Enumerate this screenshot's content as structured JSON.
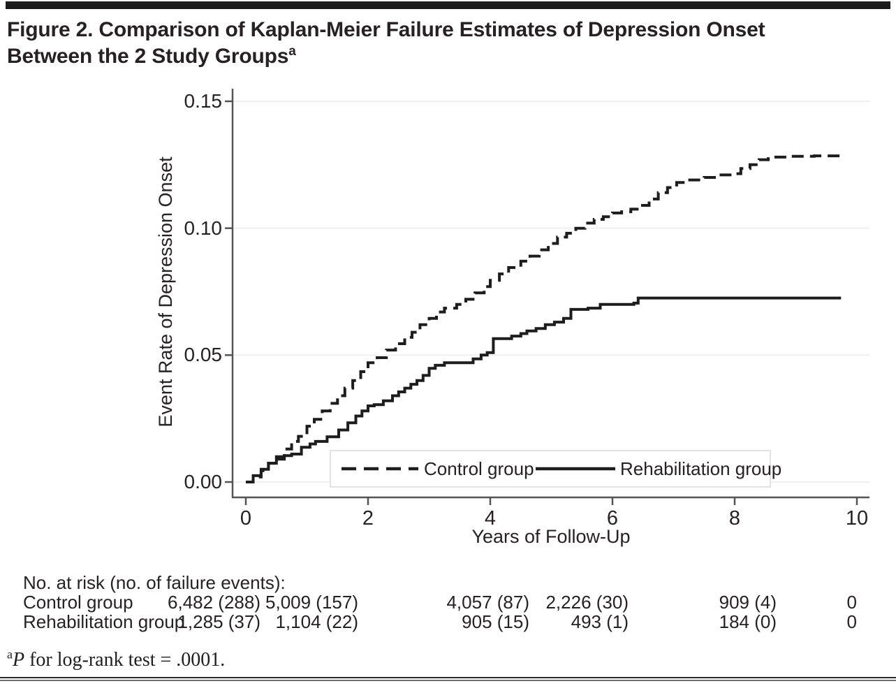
{
  "figure": {
    "title_line1": "Figure 2. Comparison of Kaplan-Meier Failure Estimates of Depression Onset",
    "title_line2": "Between the 2 Study Groups",
    "title_superscript": "a"
  },
  "chart_data": {
    "type": "line",
    "subtype": "kaplan-meier-failure-step",
    "title": "",
    "xlabel": "Years of Follow-Up",
    "ylabel": "Event Rate of Depression Onset",
    "xlim": [
      0,
      10
    ],
    "ylim": [
      0,
      0.15
    ],
    "xticks": [
      0,
      2,
      4,
      6,
      8,
      10
    ],
    "ytick_labels": [
      "0.00",
      "0.05",
      "0.10",
      "0.15"
    ],
    "ytick_values": [
      0,
      0.05,
      0.1,
      0.15
    ],
    "grid": "horizontal-light",
    "legend_position": "inside-bottom-center",
    "series": [
      {
        "name": "Control group",
        "style": "dashed",
        "points": [
          [
            0,
            0
          ],
          [
            0.12,
            0.002
          ],
          [
            0.25,
            0.0045
          ],
          [
            0.37,
            0.0074
          ],
          [
            0.5,
            0.01
          ],
          [
            0.63,
            0.013
          ],
          [
            0.75,
            0.016
          ],
          [
            0.86,
            0.018
          ],
          [
            1.0,
            0.022
          ],
          [
            1.12,
            0.0247
          ],
          [
            1.25,
            0.028
          ],
          [
            1.38,
            0.031
          ],
          [
            1.5,
            0.034
          ],
          [
            1.62,
            0.037
          ],
          [
            1.75,
            0.04
          ],
          [
            1.88,
            0.0435
          ],
          [
            2.0,
            0.047
          ],
          [
            2.15,
            0.049
          ],
          [
            2.3,
            0.052
          ],
          [
            2.45,
            0.0545
          ],
          [
            2.6,
            0.057
          ],
          [
            2.72,
            0.059
          ],
          [
            2.85,
            0.062
          ],
          [
            3.0,
            0.0645
          ],
          [
            3.12,
            0.067
          ],
          [
            3.25,
            0.0685
          ],
          [
            3.45,
            0.07
          ],
          [
            3.6,
            0.072
          ],
          [
            3.75,
            0.0745
          ],
          [
            3.9,
            0.077
          ],
          [
            4.0,
            0.0795
          ],
          [
            4.15,
            0.082
          ],
          [
            4.3,
            0.0845
          ],
          [
            4.5,
            0.087
          ],
          [
            4.65,
            0.089
          ],
          [
            4.8,
            0.0915
          ],
          [
            4.95,
            0.094
          ],
          [
            5.1,
            0.0965
          ],
          [
            5.25,
            0.098
          ],
          [
            5.4,
            0.1
          ],
          [
            5.55,
            0.102
          ],
          [
            5.7,
            0.1035
          ],
          [
            5.85,
            0.1045
          ],
          [
            6.0,
            0.106
          ],
          [
            6.15,
            0.1065
          ],
          [
            6.3,
            0.1075
          ],
          [
            6.45,
            0.109
          ],
          [
            6.6,
            0.1115
          ],
          [
            6.75,
            0.114
          ],
          [
            6.9,
            0.116
          ],
          [
            7.05,
            0.118
          ],
          [
            7.2,
            0.119
          ],
          [
            7.5,
            0.12
          ],
          [
            7.75,
            0.121
          ],
          [
            7.95,
            0.1215
          ],
          [
            8.1,
            0.1235
          ],
          [
            8.25,
            0.125
          ],
          [
            8.4,
            0.127
          ],
          [
            8.55,
            0.128
          ],
          [
            8.9,
            0.1283
          ],
          [
            9.3,
            0.1285
          ],
          [
            9.76,
            0.1285
          ]
        ]
      },
      {
        "name": "Rehabilitation group",
        "style": "solid",
        "points": [
          [
            0,
            0
          ],
          [
            0.12,
            0.0025
          ],
          [
            0.25,
            0.005
          ],
          [
            0.37,
            0.0074
          ],
          [
            0.5,
            0.009
          ],
          [
            0.63,
            0.0104
          ],
          [
            0.75,
            0.011
          ],
          [
            0.91,
            0.0137
          ],
          [
            1.05,
            0.015
          ],
          [
            1.14,
            0.016
          ],
          [
            1.33,
            0.0178
          ],
          [
            1.52,
            0.0205
          ],
          [
            1.67,
            0.0233
          ],
          [
            1.8,
            0.026
          ],
          [
            1.9,
            0.028
          ],
          [
            2.0,
            0.03
          ],
          [
            2.1,
            0.0305
          ],
          [
            2.25,
            0.032
          ],
          [
            2.4,
            0.034
          ],
          [
            2.5,
            0.0355
          ],
          [
            2.6,
            0.037
          ],
          [
            2.7,
            0.0385
          ],
          [
            2.8,
            0.04
          ],
          [
            2.9,
            0.042
          ],
          [
            3.0,
            0.0448
          ],
          [
            3.1,
            0.046
          ],
          [
            3.25,
            0.047
          ],
          [
            3.6,
            0.047
          ],
          [
            3.72,
            0.0485
          ],
          [
            3.85,
            0.05
          ],
          [
            3.95,
            0.051
          ],
          [
            4.05,
            0.0565
          ],
          [
            4.35,
            0.0575
          ],
          [
            4.5,
            0.0585
          ],
          [
            4.6,
            0.0595
          ],
          [
            4.75,
            0.0605
          ],
          [
            4.9,
            0.062
          ],
          [
            5.05,
            0.063
          ],
          [
            5.2,
            0.0645
          ],
          [
            5.32,
            0.068
          ],
          [
            5.6,
            0.0685
          ],
          [
            5.8,
            0.07
          ],
          [
            6.35,
            0.0705
          ],
          [
            6.42,
            0.0725
          ],
          [
            9.74,
            0.0725
          ]
        ]
      }
    ]
  },
  "risk_table": {
    "header": "No. at risk (no. of failure events):",
    "rows": [
      {
        "label": "Control group",
        "values": [
          "6,482 (288)",
          "5,009 (157)",
          "4,057 (87)",
          "2,226 (30)",
          "909 (4)",
          "0"
        ]
      },
      {
        "label": "Rehabilitation group",
        "values": [
          "1,285 (37)",
          "1,104 (22)",
          "905 (15)",
          "493 (1)",
          "184 (0)",
          "0"
        ]
      }
    ]
  },
  "footnote": {
    "marker": "a",
    "stat_label": "P",
    "text": " for log-rank test = .0001."
  },
  "colors": {
    "curve": "#1d1d1d",
    "axis": "#545456",
    "grid": "#efefef",
    "legend_border": "#d8d8d8",
    "text": "#262223"
  }
}
